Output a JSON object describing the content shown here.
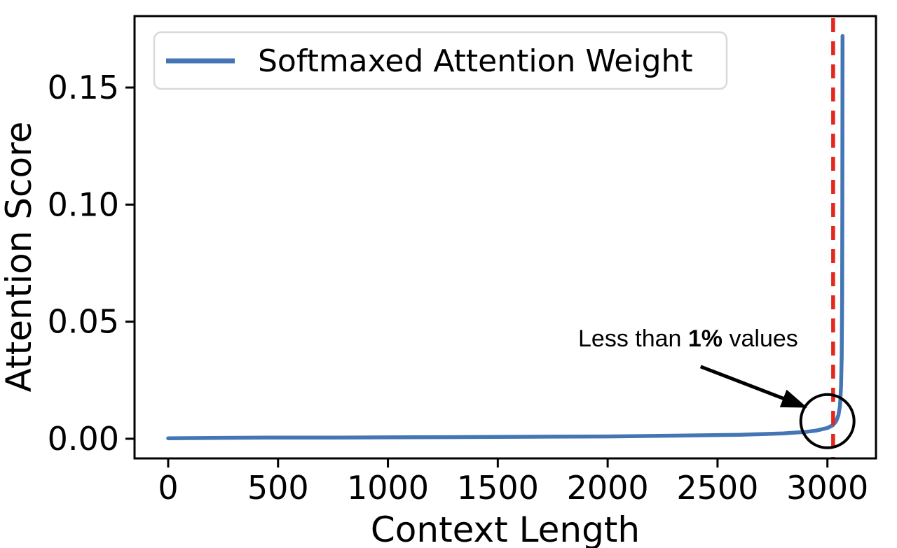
{
  "figure": {
    "background": "#ffffff",
    "frame_color": "#000000"
  },
  "chart_data": {
    "type": "line",
    "title": "",
    "xlabel": "Context Length",
    "ylabel": "Attention Score",
    "xlim": [
      -153,
      3221
    ],
    "ylim": [
      -0.0084,
      0.1805
    ],
    "grid": false,
    "x_ticks": {
      "values": [
        0,
        500,
        1000,
        1500,
        2000,
        2500,
        3000
      ],
      "labels": [
        "0",
        "500",
        "1000",
        "1500",
        "2000",
        "2500",
        "3000"
      ]
    },
    "y_ticks": {
      "values": [
        0.0,
        0.05,
        0.1,
        0.15
      ],
      "labels": [
        "0.00",
        "0.05",
        "0.10",
        "0.15"
      ]
    },
    "legend": {
      "position": "upper-left",
      "border_color": "#d9d9d9",
      "fill": "#ffffff",
      "entries": [
        {
          "label": "Softmaxed Attention Weight",
          "color": "#4476b4"
        }
      ]
    },
    "series": [
      {
        "name": "Softmaxed Attention Weight",
        "color": "#4476b4",
        "line_width": 5.5,
        "x": [
          0,
          250,
          500,
          750,
          1000,
          1250,
          1500,
          1750,
          2000,
          2300,
          2600,
          2800,
          2900,
          2950,
          3000,
          3025,
          3040,
          3050,
          3057,
          3062,
          3065,
          3067,
          3068,
          3069
        ],
        "y": [
          0.0002,
          0.0004,
          0.0005,
          0.0005,
          0.0006,
          0.0007,
          0.0008,
          0.0009,
          0.001,
          0.0013,
          0.0017,
          0.0023,
          0.0029,
          0.0035,
          0.0046,
          0.0058,
          0.0075,
          0.01,
          0.014,
          0.022,
          0.035,
          0.06,
          0.1,
          0.172
        ]
      }
    ],
    "vline": {
      "x": 3026,
      "color": "#e3271d",
      "style": "dashed",
      "width": 5.5,
      "dash": [
        20,
        13
      ]
    },
    "annotations": {
      "note": {
        "prefix": "Less than ",
        "bold": "1%",
        "suffix": " values",
        "x": 2366,
        "y": 0.0394,
        "color": "#000000",
        "font_size": 34
      },
      "arrow": {
        "x1": 2423,
        "y1": 0.0308,
        "x2": 2888,
        "y2": 0.014,
        "color": "#000000",
        "width": 5
      },
      "circle": {
        "x": 3000,
        "y": 0.0075,
        "radius_px": 38,
        "color": "#000000",
        "stroke_width": 4
      }
    }
  }
}
